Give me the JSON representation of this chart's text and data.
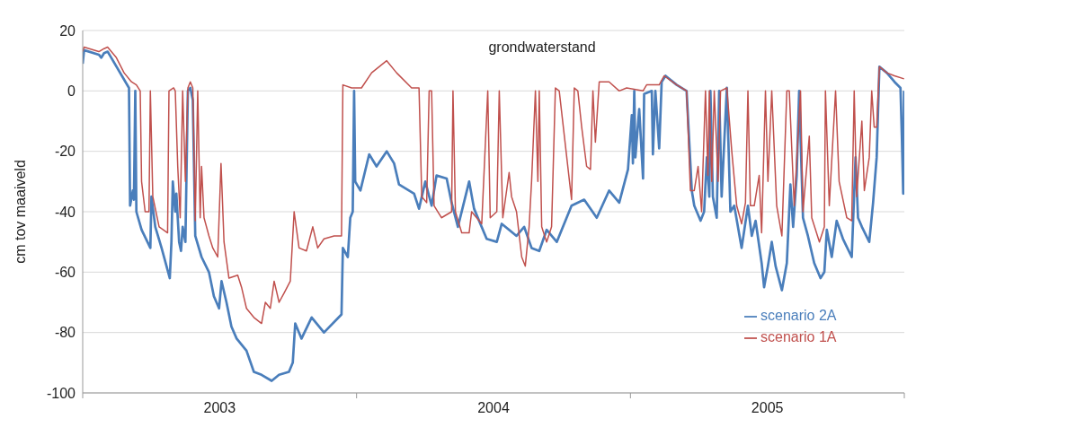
{
  "chart_data": {
    "type": "line",
    "title": "grondwaterstand",
    "ylabel": "cm tov maaiveld",
    "xlim": [
      2003,
      2006
    ],
    "xticks": [
      {
        "value": 2003,
        "label": null
      },
      {
        "value": 2003.5,
        "label": "2003"
      },
      {
        "value": 2004,
        "label": null
      },
      {
        "value": 2004.5,
        "label": "2004"
      },
      {
        "value": 2005,
        "label": null
      },
      {
        "value": 2005.5,
        "label": "2005"
      },
      {
        "value": 2006,
        "label": null
      }
    ],
    "ylim": [
      -100,
      20
    ],
    "yticks": [
      -100,
      -80,
      -60,
      -40,
      -20,
      0,
      20
    ],
    "grid": "y",
    "legend": "bottom right",
    "marker": "none",
    "line_style": "solid",
    "series": [
      {
        "name": "scenario 2A",
        "color": "#4a7ebb",
        "x": [
          2003.0,
          2003.005,
          2003.059,
          2003.068,
          2003.078,
          2003.091,
          2003.101,
          2003.169,
          2003.173,
          2003.183,
          2003.187,
          2003.192,
          2003.196,
          2003.215,
          2003.247,
          2003.251,
          2003.265,
          2003.288,
          2003.318,
          2003.324,
          2003.329,
          2003.338,
          2003.342,
          2003.352,
          2003.359,
          2003.365,
          2003.375,
          2003.384,
          2003.393,
          2003.402,
          2003.411,
          2003.434,
          2003.461,
          2003.479,
          2003.498,
          2003.507,
          2003.525,
          2003.543,
          2003.562,
          2003.598,
          2003.625,
          2003.653,
          2003.69,
          2003.717,
          2003.753,
          2003.767,
          2003.776,
          2003.799,
          2003.836,
          2003.881,
          2003.945,
          2003.95,
          2003.968,
          2003.977,
          2003.986,
          2003.991,
          2003.995,
          2004.014,
          2004.046,
          2004.073,
          2004.11,
          2004.137,
          2004.155,
          2004.21,
          2004.228,
          2004.251,
          2004.274,
          2004.292,
          2004.329,
          2004.347,
          2004.37,
          2004.411,
          2004.429,
          2004.475,
          2004.512,
          2004.53,
          2004.584,
          2004.612,
          2004.639,
          2004.667,
          2004.694,
          2004.731,
          2004.785,
          2004.831,
          2004.877,
          2004.922,
          2004.959,
          2004.991,
          2005.005,
          2005.009,
          2005.014,
          2005.018,
          2005.032,
          2005.046,
          2005.05,
          2005.078,
          2005.082,
          2005.091,
          2005.105,
          2005.114,
          2005.128,
          2005.169,
          2005.205,
          2005.224,
          2005.233,
          2005.256,
          2005.269,
          2005.279,
          2005.288,
          2005.292,
          2005.301,
          2005.315,
          2005.324,
          2005.333,
          2005.352,
          2005.365,
          2005.379,
          2005.406,
          2005.429,
          2005.443,
          2005.457,
          2005.479,
          2005.488,
          2005.502,
          2005.516,
          2005.53,
          2005.553,
          2005.571,
          2005.584,
          2005.594,
          2005.607,
          2005.616,
          2005.63,
          2005.648,
          2005.671,
          2005.694,
          2005.708,
          2005.717,
          2005.735,
          2005.753,
          2005.776,
          2005.808,
          2005.822,
          2005.831,
          2005.845,
          2005.872,
          2005.886,
          2005.899,
          2005.909,
          2005.936,
          2005.964,
          2005.986,
          2005.991,
          2005.996,
          2005.999
        ],
        "values": [
          9,
          13.5,
          12,
          11,
          12.5,
          13,
          11.5,
          1,
          -38,
          -33,
          -36,
          0,
          -40,
          -46,
          -52,
          -35,
          -45,
          -52,
          -62,
          -50,
          -30,
          -40,
          -34,
          -50,
          -53,
          -45,
          -50,
          0,
          1,
          -3,
          -48,
          -55,
          -60,
          -68,
          -72,
          -63,
          -70,
          -78,
          -82,
          -86,
          -93,
          -94,
          -96,
          -94,
          -93,
          -90,
          -77,
          -82,
          -75,
          -80,
          -74,
          -52,
          -55,
          -42,
          -40,
          0,
          -30,
          -33,
          -21,
          -25,
          -20,
          -24,
          -31,
          -34,
          -39,
          -30,
          -38,
          -28,
          -29,
          -37,
          -45,
          -30,
          -39,
          -49,
          -50,
          -44,
          -48,
          -45,
          -52,
          -53,
          -46,
          -50,
          -38,
          -36,
          -42,
          -33,
          -37,
          -26,
          -8,
          -24,
          0,
          -22,
          -6,
          -29,
          -1,
          0,
          -21,
          0,
          -19,
          3,
          5,
          2,
          0,
          -33,
          -38,
          -43,
          -40,
          -22,
          -35,
          0,
          -35,
          -42,
          0,
          -35,
          1,
          -40,
          -38,
          -52,
          -38,
          -48,
          -43,
          -57,
          -65,
          -58,
          -50,
          -58,
          -66,
          -57,
          -31,
          -45,
          -28,
          0,
          -42,
          -48,
          -57,
          -62,
          -60,
          -46,
          -55,
          -43,
          -49,
          -55,
          -22,
          -42,
          -45,
          -50,
          -37,
          -22,
          8,
          6,
          3,
          1,
          -15,
          -34,
          0
        ]
      },
      {
        "name": "scenario 1A",
        "color": "#c0504d",
        "x": [
          2003.0,
          2003.005,
          2003.059,
          2003.078,
          2003.091,
          2003.123,
          2003.151,
          2003.178,
          2003.196,
          2003.21,
          2003.215,
          2003.228,
          2003.242,
          2003.247,
          2003.256,
          2003.279,
          2003.31,
          2003.315,
          2003.332,
          2003.338,
          2003.347,
          2003.356,
          2003.365,
          2003.375,
          2003.384,
          2003.393,
          2003.402,
          2003.411,
          2003.42,
          2003.429,
          2003.434,
          2003.443,
          2003.461,
          2003.475,
          2003.493,
          2003.505,
          2003.516,
          2003.534,
          2003.566,
          2003.58,
          2003.598,
          2003.625,
          2003.653,
          2003.667,
          2003.685,
          2003.699,
          2003.717,
          2003.735,
          2003.758,
          2003.772,
          2003.79,
          2003.817,
          2003.84,
          2003.858,
          2003.881,
          2003.918,
          2003.945,
          2003.95,
          2003.982,
          2004.018,
          2004.055,
          2004.11,
          2004.146,
          2004.201,
          2004.228,
          2004.238,
          2004.256,
          2004.265,
          2004.274,
          2004.283,
          2004.31,
          2004.347,
          2004.352,
          2004.361,
          2004.384,
          2004.411,
          2004.42,
          2004.457,
          2004.479,
          2004.488,
          2004.512,
          2004.521,
          2004.534,
          2004.557,
          2004.566,
          2004.584,
          2004.603,
          2004.616,
          2004.63,
          2004.639,
          2004.653,
          2004.662,
          2004.667,
          2004.676,
          2004.694,
          2004.712,
          2004.726,
          2004.74,
          2004.785,
          2004.795,
          2004.808,
          2004.822,
          2004.84,
          2004.854,
          2004.863,
          2004.872,
          2004.886,
          2004.922,
          2004.959,
          2004.986,
          2005.046,
          2005.059,
          2005.105,
          2005.123,
          2005.169,
          2005.205,
          2005.219,
          2005.233,
          2005.247,
          2005.26,
          2005.265,
          2005.274,
          2005.283,
          2005.288,
          2005.297,
          2005.306,
          2005.32,
          2005.329,
          2005.352,
          2005.37,
          2005.388,
          2005.406,
          2005.42,
          2005.429,
          2005.438,
          2005.452,
          2005.47,
          2005.479,
          2005.493,
          2005.502,
          2005.516,
          2005.534,
          2005.553,
          2005.571,
          2005.58,
          2005.598,
          2005.621,
          2005.63,
          2005.653,
          2005.662,
          2005.69,
          2005.708,
          2005.712,
          2005.726,
          2005.749,
          2005.762,
          2005.79,
          2005.808,
          2005.817,
          2005.826,
          2005.845,
          2005.854,
          2005.872,
          2005.881,
          2005.89,
          2005.899,
          2005.909,
          2005.936,
          2005.964,
          2005.999
        ],
        "values": [
          13,
          14.5,
          13,
          14,
          14.5,
          11,
          6,
          3,
          2,
          0,
          -30,
          -40,
          -40,
          0,
          -35,
          -45,
          -47,
          0,
          1,
          0,
          -25,
          -42,
          0,
          -30,
          1,
          3,
          1,
          -43,
          0,
          -42,
          -25,
          -42,
          -48,
          -52,
          -55,
          -24,
          -50,
          -62,
          -61,
          -65,
          -72,
          -75,
          -77,
          -70,
          -72,
          -63,
          -70,
          -67,
          -63,
          -40,
          -52,
          -53,
          -45,
          -52,
          -49,
          -48,
          -48,
          2,
          1,
          1,
          6,
          10,
          6,
          1,
          1,
          -35,
          -37,
          0,
          0,
          -38,
          -42,
          -40,
          0,
          -40,
          -47,
          -47,
          -40,
          -44,
          0,
          -42,
          -40,
          0,
          -42,
          -27,
          -35,
          -40,
          -55,
          -58,
          -45,
          -30,
          0,
          -30,
          0,
          -45,
          -50,
          -45,
          1,
          0,
          -36,
          1,
          0,
          -12,
          -25,
          -26,
          0,
          -17,
          3,
          3,
          0,
          1,
          0,
          2,
          2,
          5,
          2,
          0,
          -33,
          -33,
          -25,
          -40,
          -25,
          0,
          -28,
          0,
          -30,
          0,
          -30,
          0,
          1,
          -20,
          -38,
          -44,
          -37,
          0,
          -38,
          -38,
          -28,
          -47,
          0,
          -30,
          0,
          -38,
          -48,
          0,
          0,
          -38,
          0,
          -40,
          -15,
          -42,
          -50,
          -45,
          0,
          -38,
          0,
          -30,
          -42,
          -43,
          0,
          -35,
          -10,
          -33,
          -22,
          0,
          -12,
          -12,
          8,
          6,
          5,
          4
        ]
      }
    ]
  }
}
